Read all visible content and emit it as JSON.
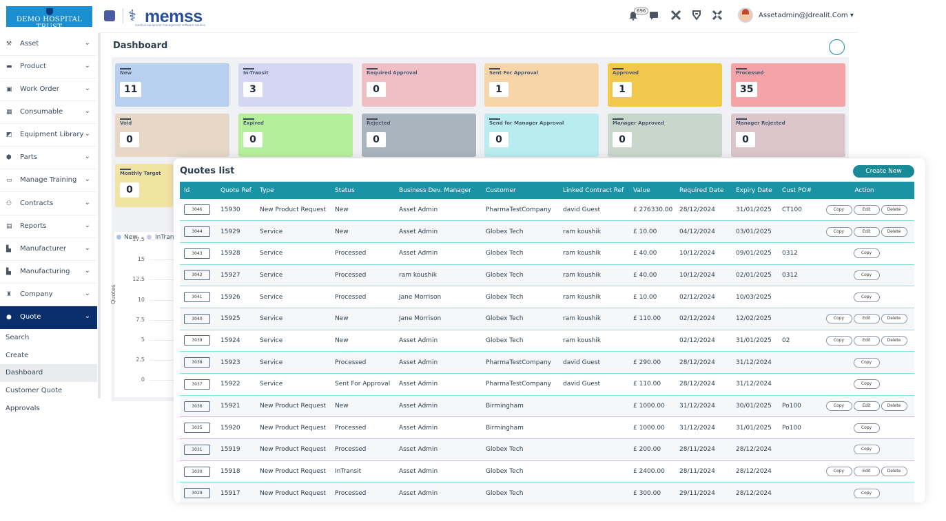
{
  "org": {
    "name": "DEMO HOSPITAL TRUST"
  },
  "brand": {
    "name": "memss",
    "tagline": "medical equipment management software solution"
  },
  "header": {
    "notification_count": "696",
    "user_email": "Assetadmin@Jdrealit.Com"
  },
  "sidebar": {
    "items": [
      {
        "label": "Asset",
        "icon": "asset-icon"
      },
      {
        "label": "Product",
        "icon": "product-icon"
      },
      {
        "label": "Work Order",
        "icon": "work-order-icon"
      },
      {
        "label": "Consumable",
        "icon": "grid-icon"
      },
      {
        "label": "Equipment Library",
        "icon": "library-icon"
      },
      {
        "label": "Parts",
        "icon": "parts-icon"
      },
      {
        "label": "Manage Training",
        "icon": "training-icon"
      },
      {
        "label": "Contracts",
        "icon": "handshake-icon"
      },
      {
        "label": "Reports",
        "icon": "reports-icon"
      },
      {
        "label": "Manufacturer",
        "icon": "factory-icon"
      },
      {
        "label": "Manufacturing",
        "icon": "factory-icon"
      },
      {
        "label": "Company",
        "icon": "company-icon"
      },
      {
        "label": "Quote",
        "icon": "quote-icon"
      }
    ],
    "subitems": [
      "Search",
      "Create",
      "Dashboard",
      "Customer Quote Approvals"
    ]
  },
  "dashboard": {
    "title": "Dashboard",
    "cards": [
      {
        "label": "New",
        "value": "11",
        "color": "#b8d0ee"
      },
      {
        "label": "In-Transit",
        "value": "3",
        "color": "#d5d6f2"
      },
      {
        "label": "Required Approval",
        "value": "0",
        "color": "#f0bfc6"
      },
      {
        "label": "Sent For Approval",
        "value": "1",
        "color": "#f7d5a8"
      },
      {
        "label": "Approved",
        "value": "1",
        "color": "#f1c84c"
      },
      {
        "label": "Processed",
        "value": "35",
        "color": "#f4a3a7"
      },
      {
        "label": "Void",
        "value": "0",
        "color": "#e6d7c6"
      },
      {
        "label": "Expired",
        "value": "0",
        "color": "#b5ef9c"
      },
      {
        "label": "Rejected",
        "value": "0",
        "color": "#a9b4be"
      },
      {
        "label": "Send for Manager Approval",
        "value": "0",
        "color": "#b9ecef"
      },
      {
        "label": "Manager Approved",
        "value": "0",
        "color": "#c9d6cc"
      },
      {
        "label": "Manager Rejected",
        "value": "0",
        "color": "#dcc6cb"
      },
      {
        "label": "Monthly Target",
        "value": "0",
        "color": "#f1e4a2"
      }
    ],
    "chart": {
      "legend": [
        "New",
        "InTran"
      ],
      "ylabel": "Quotes",
      "yticks": [
        "17.5",
        "15",
        "12.5",
        "10",
        "7.5",
        "5",
        "2.5",
        "0"
      ]
    }
  },
  "quotes": {
    "title": "Quotes list",
    "create_label": "Create New",
    "columns": [
      "Id",
      "Quote Ref",
      "Type",
      "Status",
      "Business Dev. Manager",
      "Customer",
      "Linked Contract Ref",
      "Value",
      "Required Date",
      "Expiry Date",
      "Cust PO#",
      "Action"
    ],
    "action_labels": {
      "copy": "Copy",
      "edit": "Edit",
      "delete": "Delete"
    },
    "rows": [
      {
        "id": "3046",
        "ref": "15930",
        "type": "New Product Request",
        "status": "New",
        "manager": "Asset Admin",
        "customer": "PharmaTestCompany",
        "contract": "david Guest",
        "value": "£ 276330.00",
        "required": "28/12/2024",
        "expiry": "31/01/2025",
        "po": "CT100",
        "full": true
      },
      {
        "id": "3044",
        "ref": "15929",
        "type": "Service",
        "status": "New",
        "manager": "Asset Admin",
        "customer": "Globex Tech",
        "contract": "ram koushik",
        "value": "£ 10.00",
        "required": "04/12/2024",
        "expiry": "03/01/2025",
        "po": "",
        "full": true
      },
      {
        "id": "3043",
        "ref": "15928",
        "type": "Service",
        "status": "Processed",
        "manager": "Asset Admin",
        "customer": "Globex Tech",
        "contract": "ram koushik",
        "value": "£ 40.00",
        "required": "10/12/2024",
        "expiry": "09/01/2025",
        "po": "0312",
        "full": false
      },
      {
        "id": "3042",
        "ref": "15927",
        "type": "Service",
        "status": "Processed",
        "manager": "ram koushik",
        "customer": "Globex Tech",
        "contract": "ram koushik",
        "value": "£ 40.00",
        "required": "10/12/2024",
        "expiry": "02/01/2025",
        "po": "0312",
        "full": false
      },
      {
        "id": "3041",
        "ref": "15926",
        "type": "Service",
        "status": "Processed",
        "manager": "Jane Morrison",
        "customer": "Globex Tech",
        "contract": "ram koushik",
        "value": "£ 10.00",
        "required": "02/12/2024",
        "expiry": "10/03/2025",
        "po": "",
        "full": false
      },
      {
        "id": "3040",
        "ref": "15925",
        "type": "Service",
        "status": "New",
        "manager": "Jane Morrison",
        "customer": "Globex Tech",
        "contract": "ram koushik",
        "value": "£ 110.00",
        "required": "02/12/2024",
        "expiry": "12/02/2025",
        "po": "",
        "full": true
      },
      {
        "id": "3039",
        "ref": "15924",
        "type": "Service",
        "status": "New",
        "manager": "Asset Admin",
        "customer": "Globex Tech",
        "contract": "ram koushik",
        "value": "",
        "required": "02/12/2024",
        "expiry": "31/01/2025",
        "po": "02",
        "full": true
      },
      {
        "id": "3038",
        "ref": "15923",
        "type": "Service",
        "status": "Processed",
        "manager": "Asset Admin",
        "customer": "PharmaTestCompany",
        "contract": "david Guest",
        "value": "£ 290.00",
        "required": "28/12/2024",
        "expiry": "31/12/2024",
        "po": "",
        "full": false
      },
      {
        "id": "3037",
        "ref": "15922",
        "type": "Service",
        "status": "Sent For Approval",
        "manager": "Asset Admin",
        "customer": "PharmaTestCompany",
        "contract": "david Guest",
        "value": "£ 110.00",
        "required": "28/12/2024",
        "expiry": "31/12/2024",
        "po": "",
        "full": false
      },
      {
        "id": "3036",
        "ref": "15921",
        "type": "New Product Request",
        "status": "New",
        "manager": "Asset Admin",
        "customer": "Birmingham",
        "contract": "",
        "value": "£ 1000.00",
        "required": "31/12/2024",
        "expiry": "30/01/2025",
        "po": "Po100",
        "full": true
      },
      {
        "id": "3035",
        "ref": "15920",
        "type": "New Product Request",
        "status": "Processed",
        "manager": "Asset Admin",
        "customer": "Birmingham",
        "contract": "",
        "value": "£ 1000.00",
        "required": "31/12/2024",
        "expiry": "31/01/2025",
        "po": "Po100",
        "full": false
      },
      {
        "id": "3031",
        "ref": "15919",
        "type": "New Product Request",
        "status": "Processed",
        "manager": "Asset Admin",
        "customer": "Globex Tech",
        "contract": "",
        "value": "£ 200.00",
        "required": "28/11/2024",
        "expiry": "28/12/2024",
        "po": "",
        "full": false
      },
      {
        "id": "3030",
        "ref": "15918",
        "type": "New Product Request",
        "status": "InTransit",
        "manager": "Asset Admin",
        "customer": "Globex Tech",
        "contract": "",
        "value": "£ 2400.00",
        "required": "28/11/2024",
        "expiry": "28/12/2024",
        "po": "",
        "full": true
      },
      {
        "id": "3029",
        "ref": "15917",
        "type": "New Product Request",
        "status": "Processed",
        "manager": "Asset Admin",
        "customer": "Globex Tech",
        "contract": "",
        "value": "£ 300.00",
        "required": "29/11/2024",
        "expiry": "28/12/2024",
        "po": "",
        "full": false
      }
    ]
  }
}
